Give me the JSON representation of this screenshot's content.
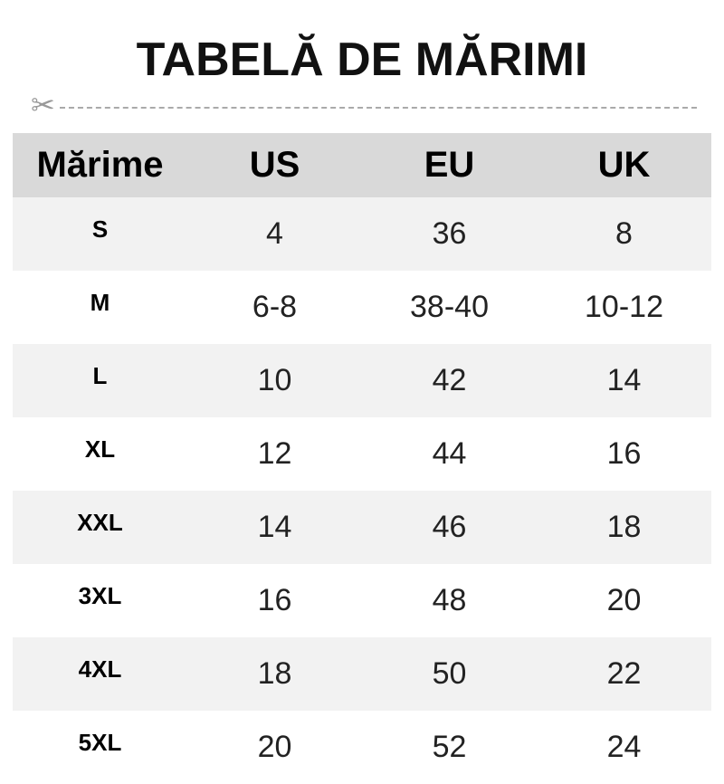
{
  "title": "TABELĂ DE MĂRIMI",
  "icons": {
    "cut": "scissors-icon"
  },
  "colors": {
    "header_bg": "#d9d9d9",
    "alt_row_bg": "#f2f2f2"
  },
  "table": {
    "headers": [
      "Mărime",
      "US",
      "EU",
      "UK"
    ],
    "rows": [
      [
        "S",
        "4",
        "36",
        "8"
      ],
      [
        "M",
        "6-8",
        "38-40",
        "10-12"
      ],
      [
        "L",
        "10",
        "42",
        "14"
      ],
      [
        "XL",
        "12",
        "44",
        "16"
      ],
      [
        "XXL",
        "14",
        "46",
        "18"
      ],
      [
        "3XL",
        "16",
        "48",
        "20"
      ],
      [
        "4XL",
        "18",
        "50",
        "22"
      ],
      [
        "5XL",
        "20",
        "52",
        "24"
      ]
    ]
  }
}
